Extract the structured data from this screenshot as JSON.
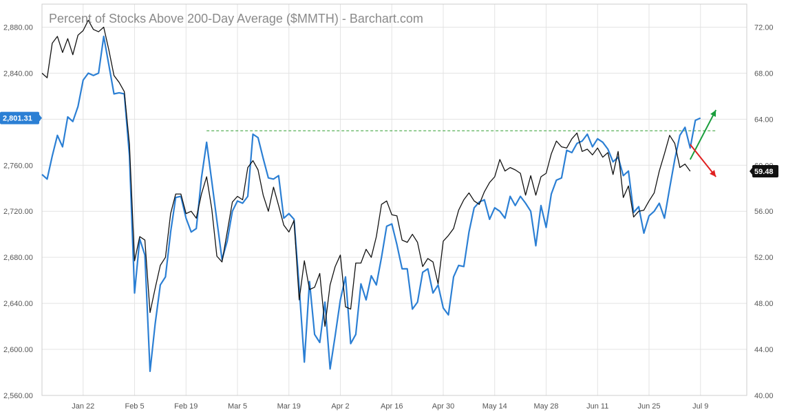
{
  "chart_data": {
    "type": "line",
    "title": "Percent of Stocks Above 200-Day Average ($MMTH) - Barchart.com",
    "left_axis": {
      "range": [
        2560,
        2900
      ],
      "ticks": [
        "2,560.00",
        "2,600.00",
        "2,640.00",
        "2,680.00",
        "2,720.00",
        "2,760.00",
        "2,800.00",
        "2,840.00",
        "2,880.00"
      ],
      "tick_values": [
        2560,
        2600,
        2640,
        2680,
        2720,
        2760,
        2800,
        2840,
        2880
      ]
    },
    "right_axis": {
      "range": [
        40,
        74
      ],
      "ticks": [
        "40.00",
        "44.00",
        "48.00",
        "52.00",
        "56.00",
        "60.00",
        "64.00",
        "68.00",
        "72.00"
      ],
      "tick_values": [
        40,
        44,
        48,
        52,
        56,
        60,
        64,
        68,
        72
      ]
    },
    "x_axis": {
      "range": [
        0,
        137
      ],
      "labels": [
        {
          "text": "Jan 22",
          "x": 8
        },
        {
          "text": "Feb 5",
          "x": 18
        },
        {
          "text": "Feb 19",
          "x": 28
        },
        {
          "text": "Mar 5",
          "x": 38
        },
        {
          "text": "Mar 19",
          "x": 48
        },
        {
          "text": "Apr 2",
          "x": 58
        },
        {
          "text": "Apr 16",
          "x": 68
        },
        {
          "text": "Apr 30",
          "x": 78
        },
        {
          "text": "May 14",
          "x": 88
        },
        {
          "text": "May 28",
          "x": 98
        },
        {
          "text": "Jun 11",
          "x": 108
        },
        {
          "text": "Jun 25",
          "x": 118
        },
        {
          "text": "Jul 9",
          "x": 128
        }
      ]
    },
    "grid": true,
    "last_value_labels": {
      "left": "2,801.31",
      "right": "59.48"
    },
    "series": [
      {
        "axis": "left",
        "color": "#2b7fd4",
        "values": [
          2752,
          2748,
          2768,
          2786,
          2776,
          2802,
          2798,
          2811,
          2834,
          2840,
          2838,
          2840,
          2872,
          2847,
          2822,
          2823,
          2822,
          2768,
          2649,
          2696,
          2682,
          2581,
          2622,
          2656,
          2663,
          2702,
          2732,
          2733,
          2714,
          2702,
          2705,
          2749,
          2780,
          2746,
          2712,
          2678,
          2694,
          2720,
          2729,
          2727,
          2733,
          2787,
          2784,
          2766,
          2749,
          2748,
          2751,
          2714,
          2718,
          2713,
          2654,
          2589,
          2659,
          2613,
          2606,
          2641,
          2583,
          2612,
          2643,
          2663,
          2605,
          2613,
          2657,
          2643,
          2664,
          2656,
          2680,
          2707,
          2709,
          2691,
          2670,
          2670,
          2635,
          2641,
          2667,
          2670,
          2649,
          2656,
          2636,
          2630,
          2663,
          2673,
          2672,
          2702,
          2723,
          2728,
          2730,
          2713,
          2723,
          2720,
          2714,
          2733,
          2725,
          2733,
          2727,
          2720,
          2690,
          2725,
          2706,
          2735,
          2747,
          2749,
          2773,
          2771,
          2779,
          2781,
          2787,
          2776,
          2783,
          2780,
          2774,
          2763,
          2767,
          2751,
          2755,
          2719,
          2724,
          2701,
          2716,
          2720,
          2727,
          2714,
          2740,
          2765,
          2786,
          2793,
          2775,
          2799,
          2801
        ]
      },
      {
        "axis": "right",
        "color": "#111111",
        "values": [
          68.0,
          67.6,
          70.6,
          71.2,
          69.8,
          71.0,
          69.6,
          71.3,
          71.7,
          72.6,
          71.8,
          71.6,
          72.0,
          70.0,
          67.8,
          67.2,
          66.4,
          61.8,
          51.7,
          53.8,
          53.5,
          47.2,
          49.3,
          51.3,
          52.0,
          55.8,
          57.5,
          57.5,
          55.8,
          56.0,
          55.4,
          57.5,
          59.0,
          56.2,
          52.1,
          51.6,
          54.2,
          56.8,
          57.3,
          57.0,
          59.8,
          60.4,
          59.6,
          57.4,
          56.0,
          58.1,
          56.5,
          54.8,
          54.2,
          55.2,
          48.3,
          51.7,
          49.2,
          49.4,
          50.6,
          46.0,
          49.6,
          51.2,
          52.2,
          47.7,
          47.5,
          51.5,
          51.5,
          52.7,
          52.0,
          53.8,
          56.6,
          56.9,
          55.7,
          55.6,
          53.5,
          53.3,
          54.0,
          53.3,
          51.2,
          51.9,
          51.6,
          49.7,
          53.4,
          53.9,
          54.5,
          56.1,
          57.0,
          57.6,
          56.9,
          56.6,
          57.7,
          58.5,
          59.0,
          60.5,
          59.5,
          59.8,
          59.6,
          59.3,
          57.4,
          59.1,
          57.4,
          59.0,
          59.3,
          61.0,
          62.1,
          61.6,
          61.5,
          62.3,
          62.8,
          61.2,
          61.4,
          60.9,
          61.5,
          60.7,
          61.1,
          59.2,
          61.2,
          57.2,
          58.2,
          55.5,
          56.0,
          56.1,
          56.9,
          57.6,
          59.5,
          61.0,
          62.6,
          61.9,
          59.8,
          60.1,
          59.48
        ]
      }
    ],
    "reference_line": {
      "axis": "right",
      "value": 63.0,
      "from_x": 32,
      "to_x": 131,
      "color": "#2a9a2a"
    },
    "arrows": [
      {
        "from": [
          126,
          60.5
        ],
        "to": [
          131,
          64.8
        ],
        "axis": "right",
        "color": "#1a9e3c"
      },
      {
        "from": [
          126,
          61.8
        ],
        "to": [
          131,
          59.0
        ],
        "axis": "right",
        "color": "#e02020"
      }
    ]
  }
}
